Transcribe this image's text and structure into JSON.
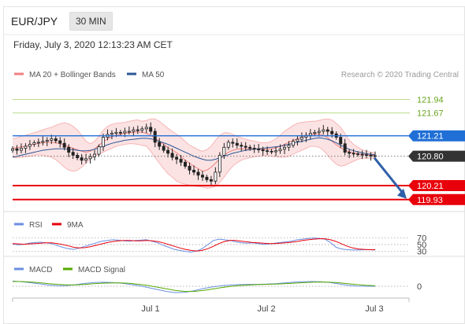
{
  "header": {
    "symbol": "EUR/JPY",
    "timeframe": "30 MIN",
    "datetime": "Friday, July 3, 2020 12:13:23 AM CET"
  },
  "legend": {
    "bollinger": "MA 20 + Bollinger Bands",
    "ma50": "MA 50",
    "credit": "Research © 2020 Trading Central"
  },
  "colors": {
    "bollinger": "#f08080",
    "ma50": "#2b5797",
    "support": "#e8000b",
    "resistance_green": "#9acd32",
    "resistance_blue": "#1f6fd6",
    "price": "#333333",
    "arrow": "#2f5fa8",
    "rsi": "#6b8fe0",
    "ninema": "#e8000b",
    "macd": "#6b8fe0",
    "macd_signal": "#55aa00"
  },
  "chart_data": [
    {
      "type": "candlestick",
      "title": "",
      "ylim": [
        119.8,
        122.2
      ],
      "price_levels": [
        {
          "label": "121.94",
          "value": 121.94,
          "kind": "resistance",
          "color": "#6aa51f"
        },
        {
          "label": "121.67",
          "value": 121.67,
          "kind": "resistance",
          "color": "#6aa51f"
        },
        {
          "label": "121.21",
          "value": 121.21,
          "kind": "pivot",
          "color": "#1f6fd6"
        },
        {
          "label": "120.80",
          "value": 120.8,
          "kind": "last price",
          "color": "#333333"
        },
        {
          "label": "120.21",
          "value": 120.21,
          "kind": "support",
          "color": "#e8000b"
        },
        {
          "label": "119.93",
          "value": 119.93,
          "kind": "support",
          "color": "#e8000b"
        }
      ],
      "close": [
        120.95,
        120.92,
        120.96,
        121.0,
        121.04,
        121.07,
        121.08,
        121.1,
        121.12,
        121.15,
        121.11,
        121.06,
        120.98,
        120.88,
        120.82,
        120.77,
        120.72,
        120.75,
        120.79,
        120.84,
        120.99,
        121.18,
        121.24,
        121.26,
        121.28,
        121.27,
        121.3,
        121.3,
        121.33,
        121.32,
        121.35,
        121.38,
        121.3,
        121.08,
        121.0,
        120.92,
        120.86,
        120.78,
        120.74,
        120.68,
        120.6,
        120.52,
        120.48,
        120.42,
        120.38,
        120.33,
        120.3,
        120.48,
        120.82,
        120.98,
        121.08,
        121.06,
        121.02,
        121.0,
        120.98,
        120.96,
        120.95,
        120.93,
        120.91,
        120.9,
        120.89,
        120.91,
        120.94,
        120.98,
        121.02,
        121.1,
        121.14,
        121.18,
        121.22,
        121.26,
        121.28,
        121.3,
        121.33,
        121.3,
        121.25,
        121.18,
        121.05,
        120.88,
        120.86,
        120.85,
        120.84,
        120.83,
        120.82,
        120.81,
        120.8
      ],
      "bands": {
        "upper": [
          121.15,
          121.17,
          121.2,
          121.22,
          121.25,
          121.27,
          121.3,
          121.33,
          121.36,
          121.38,
          121.42,
          121.45,
          121.47,
          121.45,
          121.4,
          121.33,
          121.22,
          121.1,
          121.05,
          121.1,
          121.2,
          121.32,
          121.4,
          121.44,
          121.46,
          121.47,
          121.48,
          121.5,
          121.52,
          121.53,
          121.5,
          121.52,
          121.55,
          121.55,
          121.5,
          121.43,
          121.36,
          121.3,
          121.24,
          121.18,
          121.1,
          121.02,
          120.98,
          120.93,
          120.9,
          120.93,
          121.0,
          121.12,
          121.22,
          121.27,
          121.27,
          121.24,
          121.2,
          121.17,
          121.14,
          121.12,
          121.1,
          121.08,
          121.07,
          121.07,
          121.1,
          121.15,
          121.22,
          121.3,
          121.36,
          121.42,
          121.46,
          121.48,
          121.49,
          121.5,
          121.5,
          121.52,
          121.54,
          121.55,
          121.53,
          121.46,
          121.38,
          121.25,
          121.12,
          121.04,
          120.98,
          120.93,
          120.9,
          120.88,
          120.87
        ],
        "middle": [
          120.96,
          120.97,
          120.99,
          121.0,
          121.02,
          121.04,
          121.06,
          121.07,
          121.08,
          121.08,
          121.07,
          121.05,
          121.02,
          120.99,
          120.96,
          120.93,
          120.9,
          120.88,
          120.9,
          120.95,
          121.02,
          121.09,
          121.15,
          121.19,
          121.22,
          121.24,
          121.26,
          121.27,
          121.28,
          121.29,
          121.28,
          121.26,
          121.22,
          121.16,
          121.1,
          121.04,
          120.98,
          120.92,
          120.87,
          120.8,
          120.72,
          120.66,
          120.6,
          120.55,
          120.5,
          120.52,
          120.58,
          120.66,
          120.75,
          120.82,
          120.88,
          120.92,
          120.94,
          120.95,
          120.95,
          120.95,
          120.95,
          120.94,
          120.94,
          120.94,
          120.95,
          120.97,
          121.0,
          121.04,
          121.08,
          121.12,
          121.15,
          121.18,
          121.21,
          121.23,
          121.24,
          121.25,
          121.22,
          121.17,
          121.1,
          121.03,
          120.97,
          120.92,
          120.89,
          120.87,
          120.85,
          120.84,
          120.83,
          120.82,
          120.82
        ],
        "lower": [
          120.78,
          120.77,
          120.78,
          120.79,
          120.8,
          120.82,
          120.83,
          120.82,
          120.8,
          120.78,
          120.73,
          120.66,
          120.58,
          120.52,
          120.5,
          120.52,
          120.58,
          120.66,
          120.75,
          120.8,
          120.84,
          120.88,
          120.92,
          120.96,
          121.0,
          121.02,
          121.04,
          121.05,
          121.05,
          121.04,
          121.02,
          121.0,
          120.9,
          120.78,
          120.66,
          120.55,
          120.45,
          120.38,
          120.3,
          120.26,
          120.24,
          120.22,
          120.2,
          120.19,
          120.18,
          120.16,
          120.17,
          120.2,
          120.28,
          120.38,
          120.5,
          120.6,
          120.67,
          120.72,
          120.75,
          120.77,
          120.79,
          120.8,
          120.81,
          120.81,
          120.8,
          120.79,
          120.78,
          120.78,
          120.8,
          120.84,
          120.88,
          120.92,
          120.96,
          121.0,
          121.0,
          120.98,
          120.92,
          120.82,
          120.72,
          120.64,
          120.6,
          120.62,
          120.66,
          120.7,
          120.74,
          120.76,
          120.76,
          120.76,
          120.77
        ]
      },
      "ma50": [
        120.78,
        120.8,
        120.82,
        120.84,
        120.86,
        120.88,
        120.9,
        120.92,
        120.93,
        120.94,
        120.95,
        120.95,
        120.95,
        120.94,
        120.93,
        120.92,
        120.91,
        120.91,
        120.92,
        120.94,
        120.97,
        121.0,
        121.03,
        121.06,
        121.08,
        121.1,
        121.12,
        121.13,
        121.14,
        121.15,
        121.16,
        121.16,
        121.15,
        121.13,
        121.1,
        121.07,
        121.04,
        121.0,
        120.96,
        120.92,
        120.88,
        120.84,
        120.8,
        120.77,
        120.74,
        120.72,
        120.72,
        120.74,
        120.77,
        120.8,
        120.83,
        120.86,
        120.88,
        120.9,
        120.92,
        120.93,
        120.94,
        120.95,
        120.96,
        120.97,
        120.98,
        120.99,
        121.0,
        121.02,
        121.04,
        121.06,
        121.08,
        121.1,
        121.12,
        121.14,
        121.16,
        121.17,
        121.16,
        121.14,
        121.11,
        121.07,
        121.02,
        120.98,
        120.94,
        120.91,
        120.89,
        120.87,
        120.85,
        120.84,
        120.83
      ]
    },
    {
      "type": "line",
      "title": "RSI",
      "levels": [
        {
          "label": "70",
          "value": 70
        },
        {
          "label": "50",
          "value": 50
        },
        {
          "label": "30",
          "value": 30
        }
      ],
      "ylim": [
        20,
        80
      ],
      "series": [
        {
          "name": "RSI",
          "values": [
            52,
            49,
            51,
            54,
            56,
            57,
            55,
            53,
            47,
            42,
            38,
            36,
            40,
            45,
            50,
            55,
            60,
            62,
            64,
            63,
            61,
            60,
            62,
            63,
            64,
            60,
            55,
            48,
            42,
            36,
            33,
            30,
            28,
            31,
            38,
            50,
            62,
            66,
            64,
            62,
            58,
            55,
            54,
            55,
            53,
            51,
            52,
            54,
            56,
            58,
            60,
            64,
            66,
            68,
            69,
            68,
            66,
            56,
            42,
            37,
            35,
            34,
            34,
            35,
            35,
            34
          ]
        },
        {
          "name": "9MA",
          "values": [
            53,
            52,
            51,
            52,
            53,
            54,
            55,
            55,
            53,
            50,
            46,
            42,
            40,
            41,
            44,
            48,
            52,
            56,
            59,
            61,
            62,
            62,
            61,
            61,
            62,
            61,
            59,
            55,
            50,
            45,
            40,
            36,
            33,
            31,
            33,
            38,
            45,
            53,
            59,
            62,
            62,
            60,
            58,
            56,
            55,
            54,
            53,
            53,
            54,
            55,
            57,
            59,
            62,
            64,
            66,
            67,
            67,
            64,
            59,
            52,
            45,
            40,
            37,
            36,
            35,
            35
          ]
        }
      ]
    },
    {
      "type": "line",
      "title": "MACD",
      "levels": [
        {
          "label": "0",
          "value": 0
        }
      ],
      "ylim": [
        -0.4,
        0.4
      ],
      "series": [
        {
          "name": "MACD",
          "values": [
            0.22,
            0.19,
            0.15,
            0.1,
            0.05,
            0.02,
            0.03,
            0.07,
            0.12,
            0.16,
            0.17,
            0.16,
            0.13,
            0.08,
            0.02,
            -0.06,
            -0.14,
            -0.22,
            -0.27,
            -0.26,
            -0.19,
            -0.1,
            -0.03,
            0.02,
            0.05,
            0.07,
            0.08,
            0.08,
            0.09,
            0.11,
            0.14,
            0.17,
            0.19,
            0.2,
            0.19,
            0.16,
            0.1,
            0.04,
            0.01,
            0.0,
            0.0
          ]
        },
        {
          "name": "MACD Signal",
          "values": [
            0.2,
            0.2,
            0.18,
            0.15,
            0.11,
            0.08,
            0.06,
            0.06,
            0.08,
            0.11,
            0.13,
            0.14,
            0.14,
            0.12,
            0.08,
            0.03,
            -0.04,
            -0.11,
            -0.18,
            -0.22,
            -0.22,
            -0.18,
            -0.12,
            -0.06,
            -0.01,
            0.03,
            0.05,
            0.07,
            0.08,
            0.09,
            0.11,
            0.13,
            0.15,
            0.17,
            0.18,
            0.17,
            0.15,
            0.11,
            0.07,
            0.04,
            0.02
          ]
        }
      ]
    }
  ],
  "x_axis": {
    "labels": [
      "Jul 1",
      "Jul 2",
      "Jul 3"
    ]
  }
}
